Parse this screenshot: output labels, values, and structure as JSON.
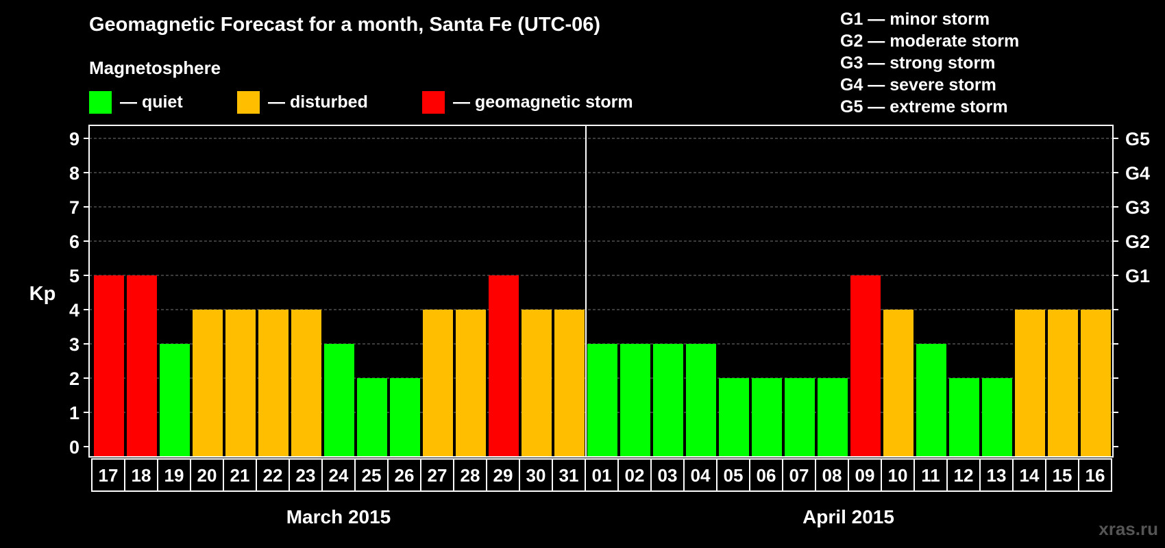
{
  "chart_data": {
    "type": "bar",
    "title": "Geomagnetic Forecast for a month, Santa Fe (UTC-06)",
    "subtitle": "Magnetosphere",
    "ylabel": "Kp",
    "ylim": [
      0,
      9
    ],
    "yticks": [
      "0",
      "1",
      "2",
      "3",
      "4",
      "5",
      "6",
      "7",
      "8",
      "9"
    ],
    "right_ticks": [
      {
        "kp": 5,
        "label": "G1"
      },
      {
        "kp": 6,
        "label": "G2"
      },
      {
        "kp": 7,
        "label": "G3"
      },
      {
        "kp": 8,
        "label": "G4"
      },
      {
        "kp": 9,
        "label": "G5"
      }
    ],
    "legend": [
      {
        "label": "— quiet",
        "color": "#00ff00"
      },
      {
        "label": "— disturbed",
        "color": "#ffbf00"
      },
      {
        "label": "— geomagnetic storm",
        "color": "#ff0000"
      }
    ],
    "storm_levels": [
      "G1 — minor storm",
      "G2 — moderate storm",
      "G3 — strong storm",
      "G4 — severe storm",
      "G5 — extreme storm"
    ],
    "months": [
      {
        "label": "March 2015",
        "start": 0,
        "count": 15
      },
      {
        "label": "April 2015",
        "start": 15,
        "count": 16
      }
    ],
    "categories": [
      "17",
      "18",
      "19",
      "20",
      "21",
      "22",
      "23",
      "24",
      "25",
      "26",
      "27",
      "28",
      "29",
      "30",
      "31",
      "01",
      "02",
      "03",
      "04",
      "05",
      "06",
      "07",
      "08",
      "09",
      "10",
      "11",
      "12",
      "13",
      "14",
      "15",
      "16"
    ],
    "values": [
      5,
      5,
      3,
      4,
      4,
      4,
      4,
      3,
      2,
      2,
      4,
      4,
      5,
      4,
      4,
      3,
      3,
      3,
      3,
      2,
      2,
      2,
      2,
      5,
      4,
      3,
      2,
      2,
      4,
      4,
      4
    ],
    "colors": {
      "quiet": "#00ff00",
      "disturbed": "#ffbf00",
      "storm": "#ff0000"
    },
    "grid": true,
    "watermark": "xras.ru"
  }
}
